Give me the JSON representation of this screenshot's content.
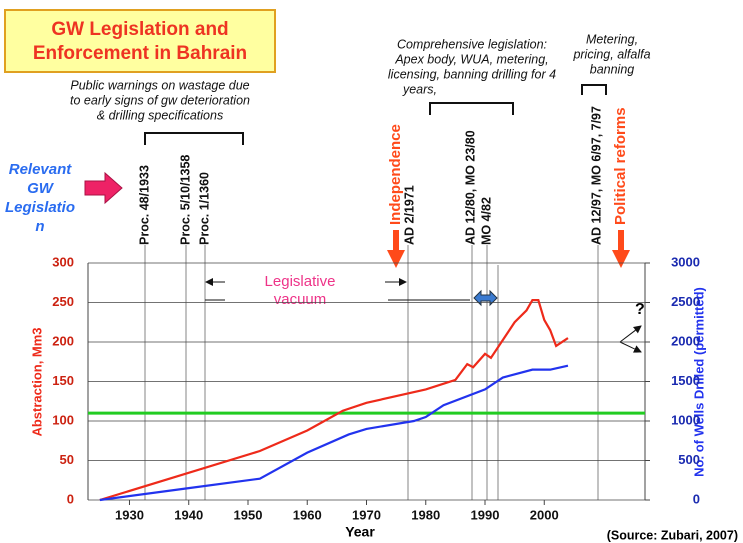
{
  "chart_data": {
    "type": "line",
    "title_lines": [
      "GW Legislation and",
      "Enforcement in Bahrain"
    ],
    "x_label": "Year",
    "y_label": "Abstraction, Mm3",
    "y2_label": "No. of  Wells Drilled (permitted)",
    "source": "(Source: Zubari, 2007)",
    "xlim": [
      1923,
      2017
    ],
    "xticks": [
      1930,
      1940,
      1950,
      1960,
      1970,
      1980,
      1990,
      2000
    ],
    "ylim": [
      0,
      300
    ],
    "yticks": [
      0,
      50,
      100,
      150,
      200,
      250,
      300
    ],
    "y2lim": [
      0,
      3000
    ],
    "y2ticks": [
      0,
      500,
      1000,
      1500,
      2000,
      2500,
      3000
    ],
    "reference_line": {
      "value": 110,
      "color": "#22cc22"
    },
    "series": [
      {
        "name": "Abstraction",
        "color": "#ee2a1a",
        "x": [
          1925,
          1952,
          1960,
          1966,
          1970,
          1980,
          1985,
          1987,
          1988,
          1990,
          1991,
          1995,
          1997,
          1998,
          1999,
          2000,
          2001,
          2002,
          2004
        ],
        "values": [
          0,
          62,
          88,
          113,
          123,
          140,
          152,
          172,
          168,
          185,
          180,
          225,
          240,
          253,
          253,
          228,
          215,
          195,
          205
        ]
      },
      {
        "name": "Wells drilled",
        "color": "#2233ee",
        "axis": "y2",
        "x": [
          1925,
          1940,
          1952,
          1960,
          1967,
          1970,
          1978,
          1980,
          1983,
          1990,
          1993,
          1998,
          2001,
          2004
        ],
        "values": [
          0,
          150,
          270,
          600,
          830,
          900,
          1000,
          1050,
          1200,
          1400,
          1550,
          1650,
          1650,
          1700
        ]
      }
    ],
    "annotations": {
      "relevant": [
        "Relevant",
        "GW",
        "Legislatio",
        "n"
      ],
      "warnings": [
        "Public warnings on wastage due",
        "to early signs of gw deterioration",
        "& drilling specifications"
      ],
      "comprehensive": [
        "Comprehensive legislation:",
        "Apex body, WUA, metering,",
        "licensing, banning drilling for 4",
        "years,"
      ],
      "metering": [
        "Metering,",
        "pricing, alfalfa",
        "banning"
      ],
      "vacuum": [
        "Legislative",
        "vacuum"
      ],
      "independence": "Independence",
      "reforms": "Political reforms",
      "question": "?",
      "events": [
        "Proc. 48/1933",
        "Proc.  5/10/1358",
        "Proc. 1/1360",
        "AD 2/1971",
        "AD 12/80, MO 23/80",
        "MO 4/82",
        "AD 12/97, MO 6/97, 7/97"
      ]
    }
  }
}
